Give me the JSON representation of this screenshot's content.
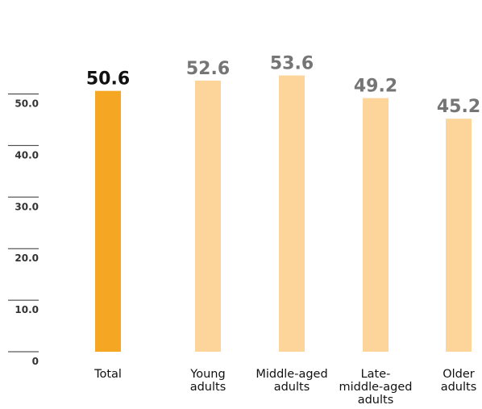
{
  "chart_data": {
    "type": "bar",
    "categories": [
      "Total",
      "Young adults",
      "Middle-aged adults",
      "Late-middle-aged adults",
      "Older adults"
    ],
    "category_lines": [
      [
        "Total"
      ],
      [
        "Young",
        "adults"
      ],
      [
        "Middle-aged",
        "adults"
      ],
      [
        "Late-",
        "middle-aged",
        "adults"
      ],
      [
        "Older",
        "adults"
      ]
    ],
    "values": [
      50.6,
      52.6,
      53.6,
      49.2,
      45.2
    ],
    "value_labels": [
      "50.6",
      "52.6",
      "53.6",
      "49.2",
      "45.2"
    ],
    "ylim": [
      0,
      55
    ],
    "yticks": [
      0,
      10,
      20,
      30,
      40,
      50
    ],
    "ytick_labels": [
      "0",
      "10.0",
      "20.0",
      "30.0",
      "40.0",
      "50.0"
    ],
    "title": "",
    "xlabel": "",
    "ylabel": "",
    "grid": false,
    "colors": {
      "highlight_bar": "#F5A623",
      "bar": "#FDD49A",
      "highlight_label": "#111111",
      "label": "#757575"
    },
    "highlight_index": 0
  }
}
